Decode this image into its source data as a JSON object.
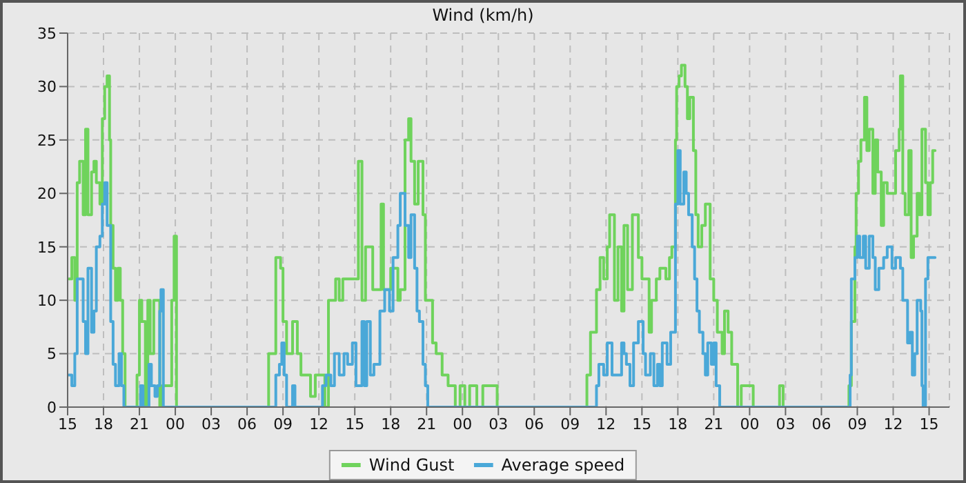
{
  "chart_data": {
    "type": "step",
    "title": "Wind (km/h)",
    "xlim": [
      15,
      88.7
    ],
    "ylim": [
      0,
      35
    ],
    "yticks": [
      0,
      5,
      10,
      15,
      20,
      25,
      30,
      35
    ],
    "xticks": [
      15,
      18,
      21,
      {
        "value": 24,
        "label": "00"
      },
      {
        "value": 27,
        "label": "03"
      },
      {
        "value": 30,
        "label": "06"
      },
      {
        "value": 33,
        "label": "09"
      },
      {
        "value": 36,
        "label": "12"
      },
      {
        "value": 39,
        "label": "15"
      },
      {
        "value": 42,
        "label": "18"
      },
      {
        "value": 45,
        "label": "21"
      },
      {
        "value": 48,
        "label": "00"
      },
      {
        "value": 51,
        "label": "03"
      },
      {
        "value": 54,
        "label": "06"
      },
      {
        "value": 57,
        "label": "09"
      },
      {
        "value": 60,
        "label": "12"
      },
      {
        "value": 63,
        "label": "15"
      },
      {
        "value": 66,
        "label": "18"
      },
      {
        "value": 69,
        "label": "21"
      },
      {
        "value": 72,
        "label": "00"
      },
      {
        "value": 75,
        "label": "03"
      },
      {
        "value": 78,
        "label": "06"
      },
      {
        "value": 81,
        "label": "09"
      },
      {
        "value": 84,
        "label": "12"
      },
      {
        "value": 87,
        "label": "15"
      }
    ],
    "grid": true,
    "legend": "bottom",
    "marker": "none",
    "line_style": "solid",
    "series": [
      {
        "name": "Wind Gust",
        "color": "#6fd35c",
        "x": [
          15.1,
          15.35,
          15.6,
          15.8,
          16.0,
          16.3,
          16.5,
          16.7,
          17.0,
          17.2,
          17.4,
          17.7,
          17.9,
          18.1,
          18.3,
          18.5,
          18.6,
          18.8,
          19.0,
          19.2,
          19.4,
          19.6,
          19.8,
          20.8,
          21.0,
          21.2,
          21.5,
          21.7,
          21.9,
          22.2,
          22.7,
          22.9,
          23.7,
          23.9,
          24.1,
          31.8,
          32.4,
          32.8,
          33.0,
          33.3,
          33.8,
          34.2,
          34.5,
          35.3,
          35.7,
          36.5,
          36.8,
          37.4,
          37.7,
          38.0,
          39.3,
          39.6,
          39.9,
          40.5,
          41.2,
          41.4,
          42.0,
          42.6,
          42.8,
          43.2,
          43.5,
          43.7,
          44.0,
          44.3,
          44.7,
          44.9,
          45.5,
          45.8,
          46.3,
          46.8,
          47.4,
          47.8,
          48.2,
          48.6,
          49.2,
          49.7,
          50.9,
          58.4,
          58.7,
          59.2,
          59.5,
          59.8,
          60.1,
          60.3,
          60.7,
          61.0,
          61.3,
          61.5,
          61.8,
          62.2,
          62.7,
          63.0,
          63.6,
          63.8,
          64.2,
          64.5,
          65.0,
          65.3,
          65.5,
          65.8,
          65.9,
          66.1,
          66.3,
          66.6,
          66.8,
          67.0,
          67.3,
          67.5,
          67.7,
          68.0,
          68.3,
          68.7,
          69.0,
          69.3,
          69.7,
          69.9,
          70.2,
          70.5,
          71.0,
          71.3,
          72.3,
          74.5,
          74.8,
          80.3,
          80.5,
          80.8,
          80.9,
          81.1,
          81.3,
          81.6,
          81.8,
          82.0,
          82.3,
          82.5,
          82.7,
          83.0,
          83.2,
          83.5,
          84.2,
          84.5,
          84.6,
          84.8,
          85.0,
          85.3,
          85.5,
          85.7,
          86.0,
          86.2,
          86.4,
          86.7,
          86.9,
          87.1,
          87.3,
          87.5
        ],
        "values": [
          12,
          14,
          10,
          21,
          23,
          18,
          26,
          18,
          22,
          23,
          21,
          19,
          27,
          30,
          31,
          25,
          17,
          13,
          10,
          13,
          10,
          5,
          0,
          3,
          10,
          8,
          0,
          10,
          5,
          10,
          0,
          2,
          10,
          16,
          0,
          5,
          14,
          13,
          8,
          5,
          8,
          5,
          3,
          1,
          3,
          0,
          10,
          12,
          10,
          12,
          23,
          10,
          15,
          11,
          19,
          11,
          13,
          10,
          11,
          25,
          27,
          23,
          19,
          23,
          18,
          10,
          6,
          5,
          3,
          2,
          0,
          2,
          0,
          2,
          0,
          2,
          0,
          3,
          7,
          11,
          14,
          12,
          15,
          18,
          10,
          15,
          9,
          17,
          11,
          18,
          14,
          12,
          7,
          10,
          12,
          13,
          12,
          14,
          15,
          25,
          30,
          31,
          32,
          30,
          27,
          29,
          24,
          18,
          15,
          17,
          19,
          12,
          10,
          7,
          5,
          9,
          7,
          4,
          0,
          2,
          0,
          2,
          0,
          2,
          8,
          15,
          20,
          23,
          25,
          29,
          24,
          26,
          20,
          25,
          22,
          17,
          21,
          20,
          24,
          26,
          31,
          20,
          18,
          24,
          14,
          16,
          20,
          18,
          26,
          21,
          18,
          21,
          24,
          24
        ]
      },
      {
        "name": "Average speed",
        "color": "#4aa8d8",
        "x": [
          15.1,
          15.35,
          15.6,
          15.8,
          16.3,
          16.5,
          16.7,
          17.0,
          17.2,
          17.4,
          17.7,
          17.9,
          18.1,
          18.3,
          18.6,
          18.8,
          19.0,
          19.3,
          19.5,
          19.7,
          21.1,
          21.3,
          21.8,
          22.0,
          22.3,
          22.5,
          22.7,
          22.8,
          23.0,
          32.4,
          32.7,
          32.9,
          33.1,
          33.3,
          33.8,
          34.0,
          36.3,
          36.6,
          37.0,
          37.3,
          37.7,
          38.1,
          38.4,
          38.8,
          39.1,
          39.6,
          39.8,
          40.0,
          40.3,
          40.6,
          41.1,
          41.5,
          41.9,
          42.2,
          42.6,
          42.8,
          43.2,
          43.5,
          43.7,
          44.0,
          44.2,
          44.4,
          44.7,
          44.9,
          45.1,
          59.2,
          59.4,
          59.8,
          60.1,
          60.5,
          61.3,
          61.5,
          61.7,
          62.0,
          62.3,
          62.7,
          63.1,
          63.3,
          63.7,
          64.0,
          64.3,
          64.5,
          64.7,
          65.1,
          65.4,
          65.8,
          66.0,
          66.2,
          66.5,
          66.7,
          66.9,
          67.2,
          67.4,
          67.6,
          67.8,
          68.1,
          68.3,
          68.5,
          68.8,
          69.0,
          69.2,
          69.5,
          80.4,
          80.5,
          80.8,
          81.0,
          81.2,
          81.5,
          81.7,
          82.0,
          82.3,
          82.5,
          82.8,
          83.2,
          83.5,
          83.9,
          84.2,
          84.6,
          84.8,
          85.2,
          85.4,
          85.6,
          85.8,
          86.0,
          86.3,
          86.4,
          86.5,
          86.7,
          86.9,
          87.2,
          87.5
        ],
        "values": [
          3,
          2,
          5,
          12,
          8,
          5,
          13,
          7,
          9,
          15,
          16,
          19,
          21,
          17,
          8,
          4,
          2,
          5,
          2,
          0,
          2,
          0,
          4,
          2,
          1,
          2,
          9,
          11,
          0,
          3,
          4,
          6,
          3,
          0,
          2,
          0,
          2,
          3,
          2,
          5,
          3,
          5,
          4,
          6,
          2,
          8,
          2,
          8,
          3,
          4,
          9,
          11,
          9,
          14,
          17,
          20,
          17,
          14,
          18,
          13,
          9,
          8,
          4,
          2,
          0,
          2,
          4,
          3,
          6,
          3,
          6,
          5,
          4,
          2,
          6,
          8,
          5,
          3,
          5,
          2,
          4,
          2,
          6,
          4,
          7,
          19,
          24,
          19,
          22,
          20,
          18,
          15,
          12,
          9,
          7,
          5,
          3,
          6,
          4,
          6,
          2,
          0,
          3,
          12,
          14,
          16,
          14,
          16,
          13,
          16,
          14,
          11,
          13,
          14,
          15,
          13,
          14,
          13,
          10,
          6,
          7,
          3,
          5,
          10,
          9,
          2,
          0,
          12,
          14,
          14,
          14
        ]
      }
    ]
  }
}
